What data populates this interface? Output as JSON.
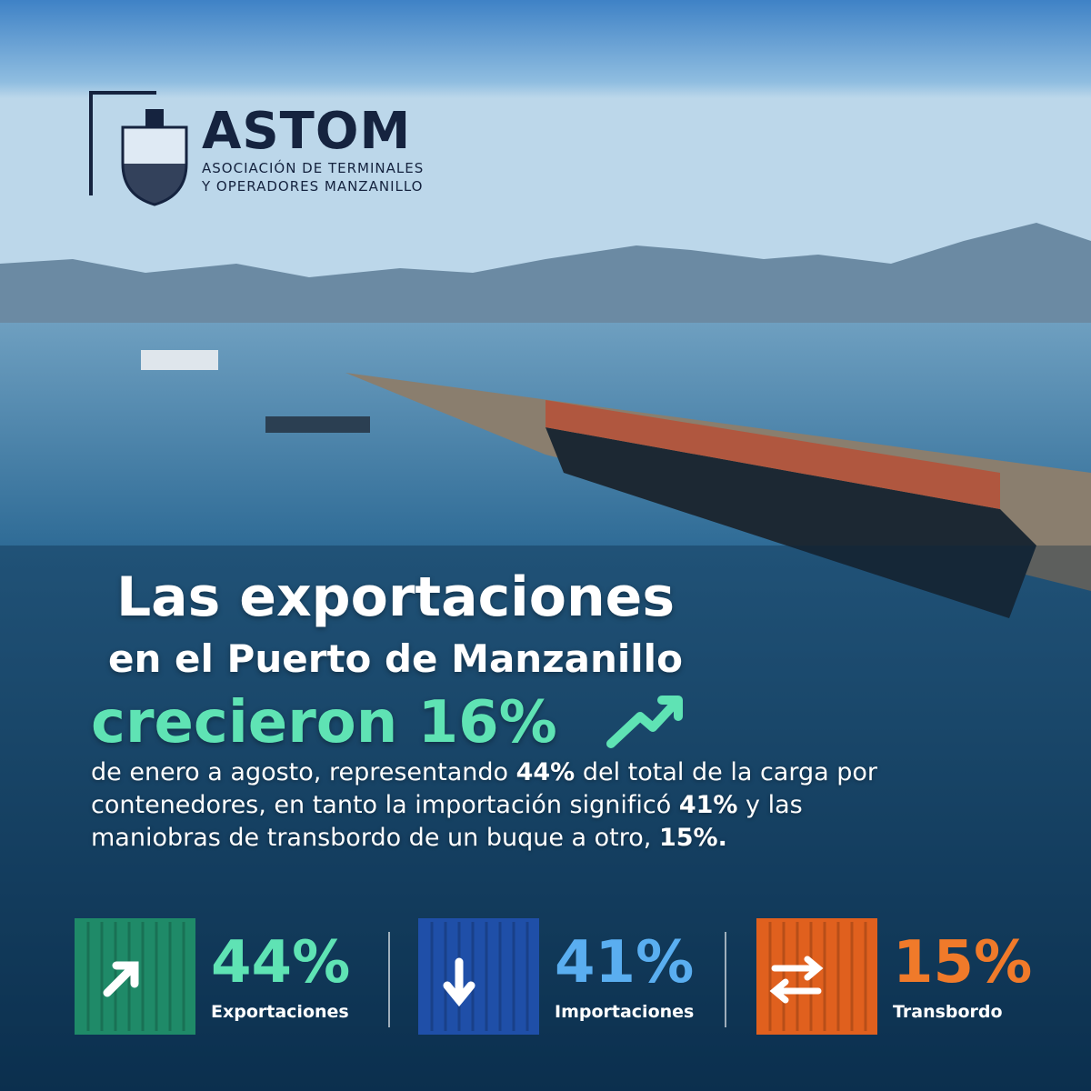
{
  "logo": {
    "name": "ASTOM",
    "subtitle_lines": [
      "ASOCIACIÓN DE TERMINALES",
      "Y OPERADORES MANZANILLO"
    ]
  },
  "headline": {
    "lines": [
      "Las exportaciones",
      "en el Puerto de Manzanillo"
    ],
    "highlight": "crecieron 16%",
    "highlight_color": "#5fe3b4"
  },
  "body": {
    "segments": [
      {
        "text": "de enero a agosto, representando ",
        "bold": false
      },
      {
        "text": "44%",
        "bold": true
      },
      {
        "text": " del total de la carga por contenedores, en tanto la importación significó ",
        "bold": false
      },
      {
        "text": "41%",
        "bold": true
      },
      {
        "text": " y las maniobras de transbordo de un buque a otro, ",
        "bold": false
      },
      {
        "text": "15%.",
        "bold": true
      }
    ]
  },
  "stats": [
    {
      "value": "44%",
      "label": "Exportaciones",
      "color": "#5fe3b4",
      "container_color": "#1f8a68"
    },
    {
      "value": "41%",
      "label": "Importaciones",
      "color": "#5aaef0",
      "container_color": "#1f4fa8"
    },
    {
      "value": "15%",
      "label": "Transbordo",
      "color": "#f07a2a",
      "container_color": "#e0601e"
    }
  ]
}
